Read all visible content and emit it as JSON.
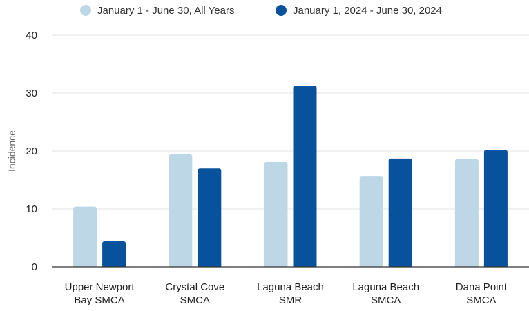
{
  "chart_data": {
    "type": "bar",
    "title": "",
    "xlabel": "",
    "ylabel": "Incidence",
    "ylim": [
      0,
      40
    ],
    "yticks": [
      0,
      10,
      20,
      30,
      40
    ],
    "grid": true,
    "legend_position": "top",
    "categories": [
      [
        "Upper Newport",
        "Bay SMCA"
      ],
      [
        "Crystal Cove",
        "SMCA"
      ],
      [
        "Laguna Beach",
        "SMR"
      ],
      [
        "Laguna Beach",
        "SMCA"
      ],
      [
        "Dana Point",
        "SMCA"
      ]
    ],
    "series": [
      {
        "name": "January 1 - June 30, All Years",
        "color": "#bdd7e7",
        "values": [
          10.4,
          19.4,
          18.1,
          15.7,
          18.6
        ]
      },
      {
        "name": "January 1, 2024 - June 30, 2024",
        "color": "#08519c",
        "values": [
          4.4,
          17.0,
          31.3,
          18.7,
          20.2
        ]
      }
    ]
  }
}
